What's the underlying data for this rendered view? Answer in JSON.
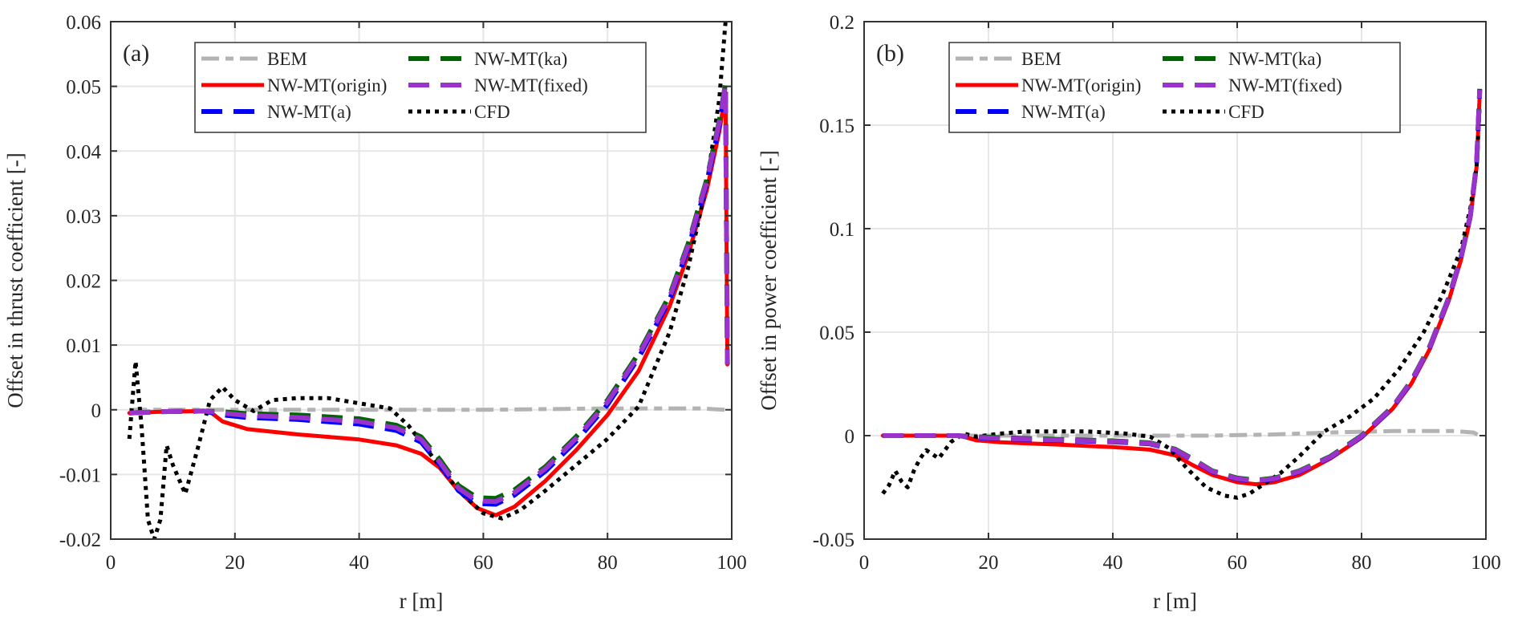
{
  "chart_data": [
    {
      "type": "line",
      "panel_label": "(a)",
      "xlabel": "r [m]",
      "ylabel": "Offset in thrust coefficient [-]",
      "xlim": [
        0,
        100
      ],
      "ylim": [
        -0.02,
        0.06
      ],
      "xticks": [
        0,
        20,
        40,
        60,
        80,
        100
      ],
      "xtick_labels": [
        "0",
        "20",
        "40",
        "60",
        "80",
        "100"
      ],
      "yticks": [
        -0.02,
        -0.01,
        0,
        0.01,
        0.02,
        0.03,
        0.04,
        0.05,
        0.06
      ],
      "ytick_labels": [
        "-0.02",
        "-0.01",
        "0",
        "0.01",
        "0.02",
        "0.03",
        "0.04",
        "0.05",
        "0.06"
      ],
      "grid": true,
      "legend_position": "top-center",
      "series": [
        {
          "name": "BEM",
          "color": "#b3b3b3",
          "style": "dashdot",
          "x": [
            3,
            20,
            40,
            60,
            80,
            95,
            99
          ],
          "y": [
            0,
            0,
            0,
            0,
            0.0002,
            0.0002,
            0
          ]
        },
        {
          "name": "NW-MT(origin)",
          "color": "#ff0000",
          "style": "solid",
          "x": [
            3,
            8,
            15,
            16,
            18,
            22,
            30,
            40,
            46,
            50,
            53,
            56,
            59,
            62,
            65,
            70,
            75,
            80,
            85,
            90,
            93,
            96,
            98,
            99,
            99.3
          ],
          "y": [
            -0.0005,
            -0.0003,
            -0.0002,
            -0.0003,
            -0.0018,
            -0.003,
            -0.0038,
            -0.0046,
            -0.0055,
            -0.0068,
            -0.009,
            -0.0125,
            -0.0152,
            -0.0163,
            -0.015,
            -0.011,
            -0.0062,
            -0.0008,
            0.006,
            0.016,
            0.024,
            0.034,
            0.043,
            0.049,
            0.007
          ]
        },
        {
          "name": "NW-MT(a)",
          "color": "#0000ff",
          "style": "dashed",
          "x": [
            3,
            8,
            15,
            18,
            22,
            30,
            40,
            46,
            50,
            53,
            56,
            59,
            62,
            65,
            70,
            75,
            80,
            85,
            90,
            93,
            96,
            98,
            99,
            99.3
          ],
          "y": [
            -0.0005,
            -0.0003,
            -0.0002,
            -0.0008,
            -0.0012,
            -0.0015,
            -0.0022,
            -0.0032,
            -0.005,
            -0.0085,
            -0.0125,
            -0.0145,
            -0.0146,
            -0.0132,
            -0.0095,
            -0.0048,
            0.0008,
            0.008,
            0.017,
            0.025,
            0.035,
            0.044,
            0.05,
            0.007
          ]
        },
        {
          "name": "NW-MT(ka)",
          "color": "#006400",
          "style": "dashed",
          "x": [
            3,
            8,
            15,
            18,
            22,
            30,
            40,
            46,
            50,
            53,
            56,
            59,
            62,
            65,
            70,
            75,
            80,
            85,
            90,
            93,
            96,
            98,
            99,
            99.3
          ],
          "y": [
            -0.0005,
            -0.0003,
            -0.0002,
            -0.0003,
            -0.0006,
            -0.0008,
            -0.0014,
            -0.0024,
            -0.0042,
            -0.0077,
            -0.0117,
            -0.0136,
            -0.0137,
            -0.0124,
            -0.0088,
            -0.0041,
            0.0015,
            0.0087,
            0.0177,
            0.0257,
            0.0357,
            0.0447,
            0.0505,
            0.007
          ]
        },
        {
          "name": "NW-MT(fixed)",
          "color": "#9933cc",
          "style": "dashed",
          "x": [
            3,
            8,
            15,
            18,
            22,
            30,
            40,
            46,
            50,
            53,
            56,
            59,
            62,
            65,
            70,
            75,
            80,
            85,
            90,
            93,
            96,
            98,
            99,
            99.3
          ],
          "y": [
            -0.0005,
            -0.0003,
            -0.0002,
            -0.0005,
            -0.0009,
            -0.0012,
            -0.0018,
            -0.0028,
            -0.0046,
            -0.0081,
            -0.0121,
            -0.0141,
            -0.0142,
            -0.0128,
            -0.0091,
            -0.0044,
            0.0012,
            0.0084,
            0.0174,
            0.0254,
            0.0354,
            0.0444,
            0.0502,
            0.007
          ]
        },
        {
          "name": "CFD",
          "color": "#000000",
          "style": "dotted",
          "x": [
            3,
            4,
            5,
            6,
            7,
            8,
            9,
            10,
            12,
            14,
            16,
            18,
            20,
            23,
            26,
            30,
            35,
            40,
            45,
            48,
            52,
            56,
            60,
            63,
            66,
            70,
            75,
            80,
            85,
            90,
            93,
            96,
            98,
            99
          ],
          "y": [
            -0.0045,
            0.0075,
            -0.003,
            -0.017,
            -0.02,
            -0.017,
            -0.0055,
            -0.0085,
            -0.013,
            -0.006,
            0.0015,
            0.0035,
            0.0015,
            -0.0002,
            0.0015,
            0.0018,
            0.0018,
            0.001,
            0.0002,
            -0.0025,
            -0.0075,
            -0.0125,
            -0.016,
            -0.0168,
            -0.0155,
            -0.0125,
            -0.0085,
            -0.0045,
            0.0005,
            0.012,
            0.022,
            0.035,
            0.048,
            0.06
          ]
        }
      ]
    },
    {
      "type": "line",
      "panel_label": "(b)",
      "xlabel": "r [m]",
      "ylabel": "Offset in power coefficient [-]",
      "xlim": [
        0,
        100
      ],
      "ylim": [
        -0.05,
        0.2
      ],
      "xticks": [
        0,
        20,
        40,
        60,
        80,
        100
      ],
      "xtick_labels": [
        "0",
        "20",
        "40",
        "60",
        "80",
        "100"
      ],
      "yticks": [
        -0.05,
        0,
        0.05,
        0.1,
        0.15,
        0.2
      ],
      "ytick_labels": [
        "-0.05",
        "0",
        "0.05",
        "0.1",
        "0.15",
        "0.2"
      ],
      "grid": true,
      "legend_position": "top-center",
      "series": [
        {
          "name": "BEM",
          "color": "#b3b3b3",
          "style": "dashdot",
          "x": [
            3,
            20,
            40,
            55,
            65,
            75,
            85,
            95,
            98,
            99
          ],
          "y": [
            0,
            0,
            0,
            0,
            0.0005,
            0.0015,
            0.0022,
            0.0022,
            0.0015,
            0
          ]
        },
        {
          "name": "NW-MT(origin)",
          "color": "#ff0000",
          "style": "solid",
          "x": [
            3,
            10,
            15,
            16,
            18,
            22,
            30,
            40,
            46,
            50,
            53,
            56,
            60,
            63,
            66,
            70,
            75,
            80,
            85,
            88,
            91,
            94,
            96,
            97.5,
            98.5,
            99
          ],
          "y": [
            0,
            0,
            0,
            -0.0005,
            -0.0022,
            -0.0032,
            -0.0042,
            -0.0055,
            -0.0068,
            -0.0095,
            -0.0145,
            -0.019,
            -0.0225,
            -0.0235,
            -0.0225,
            -0.019,
            -0.011,
            -0.001,
            0.013,
            0.025,
            0.042,
            0.065,
            0.085,
            0.105,
            0.13,
            0.165
          ]
        },
        {
          "name": "NW-MT(a)",
          "color": "#0000ff",
          "style": "dashed",
          "x": [
            3,
            10,
            15,
            18,
            22,
            30,
            40,
            46,
            50,
            53,
            56,
            60,
            63,
            66,
            70,
            75,
            80,
            85,
            88,
            91,
            94,
            96,
            97.5,
            98.5,
            99
          ],
          "y": [
            0,
            0,
            0,
            -0.001,
            -0.0015,
            -0.0022,
            -0.003,
            -0.004,
            -0.007,
            -0.012,
            -0.0175,
            -0.021,
            -0.022,
            -0.021,
            -0.0175,
            -0.0105,
            -0.0005,
            0.0135,
            0.026,
            0.043,
            0.066,
            0.086,
            0.106,
            0.131,
            0.167
          ]
        },
        {
          "name": "NW-MT(ka)",
          "color": "#006400",
          "style": "dashed",
          "x": [
            3,
            10,
            15,
            18,
            22,
            30,
            40,
            46,
            50,
            53,
            56,
            60,
            63,
            66,
            70,
            75,
            80,
            85,
            88,
            91,
            94,
            96,
            97.5,
            98.5,
            99
          ],
          "y": [
            0,
            0,
            0,
            -0.0005,
            -0.001,
            -0.0017,
            -0.0025,
            -0.0035,
            -0.0065,
            -0.0115,
            -0.017,
            -0.0205,
            -0.0215,
            -0.0205,
            -0.017,
            -0.01,
            0,
            0.014,
            0.0265,
            0.0435,
            0.0665,
            0.0865,
            0.1065,
            0.1315,
            0.1675
          ]
        },
        {
          "name": "NW-MT(fixed)",
          "color": "#9933cc",
          "style": "dashed",
          "x": [
            3,
            10,
            15,
            18,
            22,
            30,
            40,
            46,
            50,
            53,
            56,
            60,
            63,
            66,
            70,
            75,
            80,
            85,
            88,
            91,
            94,
            96,
            97.5,
            98.5,
            99
          ],
          "y": [
            0,
            0,
            0,
            -0.0008,
            -0.0013,
            -0.002,
            -0.0028,
            -0.0038,
            -0.0068,
            -0.0118,
            -0.0173,
            -0.0208,
            -0.0218,
            -0.0208,
            -0.0173,
            -0.0103,
            -0.0003,
            0.0137,
            0.0262,
            0.0432,
            0.0662,
            0.0862,
            0.1062,
            0.1312,
            0.167
          ]
        },
        {
          "name": "CFD",
          "color": "#000000",
          "style": "dotted",
          "x": [
            3,
            4,
            5,
            6,
            7,
            8,
            9,
            10,
            11,
            12,
            14,
            16,
            18,
            22,
            26,
            30,
            36,
            42,
            46,
            49,
            52,
            55,
            58,
            60,
            62,
            64,
            67,
            70,
            74,
            78,
            82,
            86,
            90,
            93,
            96,
            97.5,
            98.5,
            99
          ],
          "y": [
            -0.028,
            -0.024,
            -0.017,
            -0.022,
            -0.025,
            -0.017,
            -0.011,
            -0.007,
            -0.009,
            -0.011,
            -0.003,
            0.001,
            -0.0005,
            0.001,
            0.002,
            0.002,
            0.002,
            0.001,
            -0.0005,
            -0.006,
            -0.016,
            -0.025,
            -0.029,
            -0.03,
            -0.028,
            -0.024,
            -0.018,
            -0.01,
            0.002,
            0.009,
            0.018,
            0.032,
            0.05,
            0.068,
            0.09,
            0.11,
            0.13,
            0.16
          ]
        }
      ]
    }
  ]
}
